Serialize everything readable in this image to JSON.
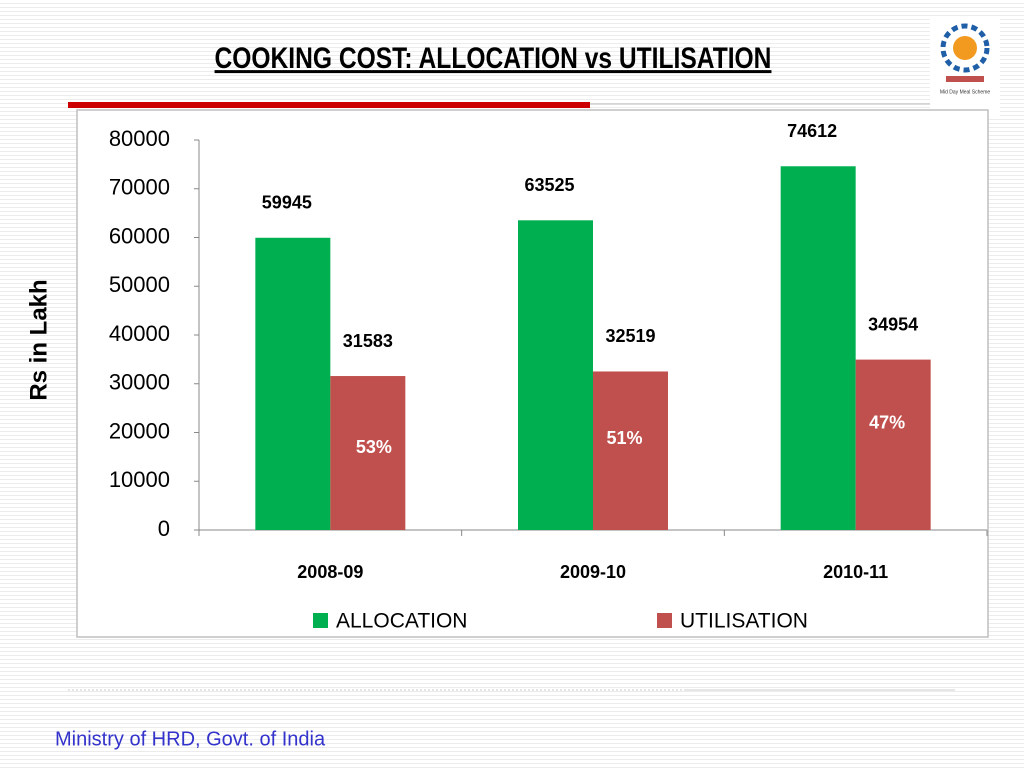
{
  "chart_data": {
    "type": "bar",
    "title": "COOKING COST: ALLOCATION vs UTILISATION",
    "ylabel": "Rs in Lakh",
    "categories": [
      "2008-09",
      "2009-10",
      "2010-11"
    ],
    "series": [
      {
        "name": "ALLOCATION",
        "color": "#00b050",
        "values": [
          59945,
          63525,
          74612
        ]
      },
      {
        "name": "UTILISATION",
        "color": "#c0504d",
        "values": [
          31583,
          32519,
          34954
        ]
      }
    ],
    "annotations": [
      "53%",
      "51%",
      "47%"
    ],
    "ylim": [
      0,
      80000
    ],
    "yticks": [
      0,
      10000,
      20000,
      30000,
      40000,
      50000,
      60000,
      70000,
      80000
    ],
    "grid": false,
    "legend": "bottom"
  },
  "footer": "Ministry of HRD, Govt. of India",
  "logo_text": "Mid Day Meal Scheme"
}
